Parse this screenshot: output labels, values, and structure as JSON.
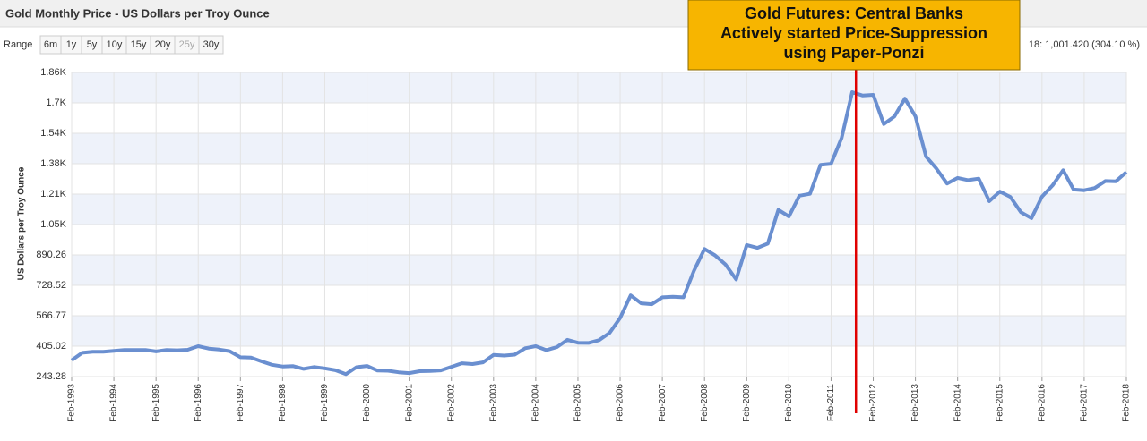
{
  "chart_data": {
    "type": "line",
    "title": "Gold Monthly Price - US Dollars per Troy Ounce",
    "range_label": "Range",
    "range_buttons": [
      "6m",
      "1y",
      "5y",
      "10y",
      "15y",
      "20y",
      "25y",
      "30y"
    ],
    "summary": "18: 1,001.420 (304.10 %)",
    "annotation": [
      "Gold Futures: Central Banks",
      "Actively started Price-Suppression",
      "using Paper-Ponzi"
    ],
    "annotation_color": "#f7b500",
    "vline": {
      "x": 2011.67,
      "color": "#e00000"
    },
    "y_label": "US Dollars per Troy Ounce",
    "grid": true,
    "x": [
      1993.08,
      1993.33,
      1993.58,
      1993.83,
      1994.08,
      1994.33,
      1994.58,
      1994.83,
      1995.08,
      1995.33,
      1995.58,
      1995.83,
      1996.08,
      1996.33,
      1996.58,
      1996.83,
      1997.08,
      1997.33,
      1997.58,
      1997.83,
      1998.08,
      1998.33,
      1998.58,
      1998.83,
      1999.08,
      1999.33,
      1999.58,
      1999.83,
      2000.08,
      2000.33,
      2000.58,
      2000.83,
      2001.08,
      2001.33,
      2001.58,
      2001.83,
      2002.08,
      2002.33,
      2002.58,
      2002.83,
      2003.08,
      2003.33,
      2003.58,
      2003.83,
      2004.08,
      2004.33,
      2004.58,
      2004.83,
      2005.08,
      2005.33,
      2005.58,
      2005.83,
      2006.08,
      2006.33,
      2006.58,
      2006.83,
      2007.08,
      2007.33,
      2007.58,
      2007.83,
      2008.08,
      2008.33,
      2008.58,
      2008.83,
      2009.08,
      2009.33,
      2009.58,
      2009.83,
      2010.08,
      2010.33,
      2010.58,
      2010.83,
      2011.08,
      2011.33,
      2011.58,
      2011.83,
      2012.08,
      2012.33,
      2012.58,
      2012.83,
      2013.08,
      2013.33,
      2013.58,
      2013.83,
      2014.08,
      2014.33,
      2014.58,
      2014.83,
      2015.08,
      2015.33,
      2015.58,
      2015.83,
      2016.08,
      2016.33,
      2016.58,
      2016.83,
      2017.08,
      2017.33,
      2017.58,
      2017.83,
      2018.08
    ],
    "series": [
      {
        "name": "Gold",
        "color": "#6a8fd0",
        "values": [
          330,
          370,
          375,
          375,
          380,
          385,
          385,
          385,
          377,
          385,
          383,
          386,
          405,
          392,
          387,
          378,
          346,
          344,
          324,
          306,
          297,
          299,
          284,
          294,
          287,
          277,
          256,
          293,
          300,
          275,
          274,
          266,
          262,
          272,
          273,
          276,
          295,
          314,
          310,
          319,
          359,
          355,
          360,
          394,
          405,
          384,
          400,
          439,
          423,
          422,
          437,
          476,
          555,
          675,
          633,
          628,
          665,
          668,
          665,
          806,
          922,
          888,
          839,
          760,
          943,
          928,
          950,
          1130,
          1095,
          1205,
          1215,
          1370,
          1375,
          1512,
          1756,
          1738,
          1742,
          1586,
          1626,
          1722,
          1627,
          1414,
          1349,
          1270,
          1300,
          1288,
          1296,
          1176,
          1227,
          1199,
          1117,
          1086,
          1200,
          1260,
          1341,
          1238,
          1234,
          1246,
          1283,
          1282,
          1331
        ]
      }
    ],
    "xlim": [
      1993.08,
      2018.08
    ],
    "xticks": [
      {
        "value": 1993.08,
        "label": "Feb-1993"
      },
      {
        "value": 1994.08,
        "label": "Feb-1994"
      },
      {
        "value": 1995.08,
        "label": "Feb-1995"
      },
      {
        "value": 1996.08,
        "label": "Feb-1996"
      },
      {
        "value": 1997.08,
        "label": "Feb-1997"
      },
      {
        "value": 1998.08,
        "label": "Feb-1998"
      },
      {
        "value": 1999.08,
        "label": "Feb-1999"
      },
      {
        "value": 2000.08,
        "label": "Feb-2000"
      },
      {
        "value": 2001.08,
        "label": "Feb-2001"
      },
      {
        "value": 2002.08,
        "label": "Feb-2002"
      },
      {
        "value": 2003.08,
        "label": "Feb-2003"
      },
      {
        "value": 2004.08,
        "label": "Feb-2004"
      },
      {
        "value": 2005.08,
        "label": "Feb-2005"
      },
      {
        "value": 2006.08,
        "label": "Feb-2006"
      },
      {
        "value": 2007.08,
        "label": "Feb-2007"
      },
      {
        "value": 2008.08,
        "label": "Feb-2008"
      },
      {
        "value": 2009.08,
        "label": "Feb-2009"
      },
      {
        "value": 2010.08,
        "label": "Feb-2010"
      },
      {
        "value": 2011.08,
        "label": "Feb-2011"
      },
      {
        "value": 2012.08,
        "label": "Feb-2012"
      },
      {
        "value": 2013.08,
        "label": "Feb-2013"
      },
      {
        "value": 2014.08,
        "label": "Feb-2014"
      },
      {
        "value": 2015.08,
        "label": "Feb-2015"
      },
      {
        "value": 2016.08,
        "label": "Feb-2016"
      },
      {
        "value": 2017.08,
        "label": "Feb-2017"
      },
      {
        "value": 2018.08,
        "label": "Feb-2018"
      }
    ],
    "ylim": [
      243.28,
      1860.73
    ],
    "yticks": [
      243.28,
      405.02,
      566.77,
      728.52,
      890.26,
      {
        "value": 1052.01,
        "label": "1.05K"
      },
      {
        "value": 1213.75,
        "label": "1.21K"
      },
      {
        "value": 1375.5,
        "label": "1.38K"
      },
      {
        "value": 1537.24,
        "label": "1.54K"
      },
      {
        "value": 1698.99,
        "label": "1.7K"
      },
      {
        "value": 1860.73,
        "label": "1.86K"
      }
    ]
  }
}
